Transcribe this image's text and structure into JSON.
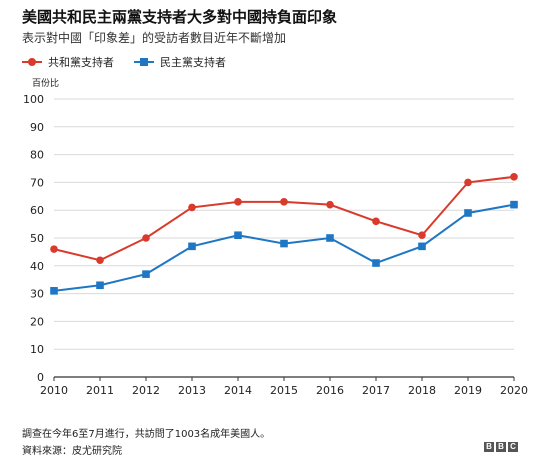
{
  "title": "美國共和民主兩黨支持者大多對中國持負面印象",
  "subtitle": "表示對中國「印象差」的受訪者數目近年不斷增加",
  "colors": {
    "republican": "#d93a2b",
    "democrat": "#1f77c4",
    "grid": "#d9d9d9",
    "axis": "#333333"
  },
  "footnote": "調查在今年6至7月進行，共訪問了1003名成年美國人。",
  "source": "資料來源：皮尤研究院",
  "logo": [
    "B",
    "B",
    "C"
  ],
  "chart_data": {
    "type": "line",
    "ylabel": "百份比",
    "xlabel": "",
    "ylim": [
      0,
      100
    ],
    "yticks": [
      0,
      10,
      20,
      30,
      40,
      50,
      60,
      70,
      80,
      90,
      100
    ],
    "x": [
      "2010",
      "2011",
      "2012",
      "2013",
      "2014",
      "2015",
      "2016",
      "2017",
      "2018",
      "2019",
      "2020"
    ],
    "grid": true,
    "legend_position": "top-left",
    "series": [
      {
        "name": "共和黨支持者",
        "marker": "circle",
        "color": "#d93a2b",
        "values": [
          46,
          42,
          50,
          61,
          63,
          63,
          62,
          56,
          51,
          70,
          72
        ]
      },
      {
        "name": "民主黨支持者",
        "marker": "square",
        "color": "#1f77c4",
        "values": [
          31,
          33,
          37,
          47,
          51,
          48,
          50,
          41,
          47,
          59,
          62
        ]
      }
    ]
  }
}
